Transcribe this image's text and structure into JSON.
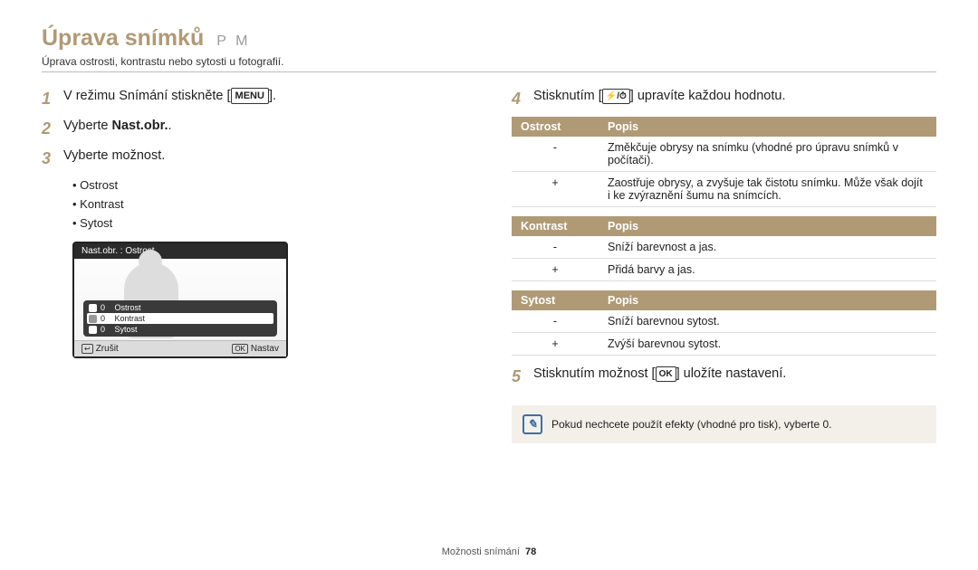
{
  "header": {
    "title": "Úprava snímků",
    "modes": "P M",
    "subtitle": "Úprava ostrosti, kontrastu nebo sytosti u fotografií."
  },
  "left": {
    "steps": [
      {
        "num": "1",
        "pre": "V režimu Snímání stiskněte [",
        "box": "MENU",
        "post": "]."
      },
      {
        "num": "2",
        "pre": "Vyberte ",
        "bold": "Nast.obr.",
        "post": "."
      },
      {
        "num": "3",
        "pre": "Vyberte možnost."
      }
    ],
    "bullets": [
      "Ostrost",
      "Kontrast",
      "Sytost"
    ],
    "cam": {
      "header": "Nast.obr. : Ostrost",
      "rows": [
        {
          "label": "Ostrost",
          "val": "0"
        },
        {
          "label": "Kontrast",
          "val": "0"
        },
        {
          "label": "Sytost",
          "val": "0"
        }
      ],
      "footer_left_icon": "↩",
      "footer_left": "Zrušit",
      "footer_right_icon": "OK",
      "footer_right": "Nastav"
    }
  },
  "right": {
    "step4": {
      "num": "4",
      "pre": "Stisknutím [",
      "icons": "⚡/⏱",
      "post": "] upravíte každou hodnotu."
    },
    "tables": [
      {
        "h1": "Ostrost",
        "h2": "Popis",
        "rows": [
          {
            "k": "-",
            "v": "Změkčuje obrysy na snímku (vhodné pro úpravu snímků v počítači)."
          },
          {
            "k": "+",
            "v": "Zaostřuje obrysy, a zvyšuje tak čistotu snímku. Může však dojít i ke zvýraznění šumu na snímcích."
          }
        ]
      },
      {
        "h1": "Kontrast",
        "h2": "Popis",
        "rows": [
          {
            "k": "-",
            "v": "Sníží barevnost a jas."
          },
          {
            "k": "+",
            "v": "Přidá barvy a jas."
          }
        ]
      },
      {
        "h1": "Sytost",
        "h2": "Popis",
        "rows": [
          {
            "k": "-",
            "v": "Sníží barevnou sytost."
          },
          {
            "k": "+",
            "v": "Zvýší barevnou sytost."
          }
        ]
      }
    ],
    "step5": {
      "num": "5",
      "pre": "Stisknutím možnost [",
      "box": "OK",
      "post": "] uložíte nastavení."
    },
    "note": "Pokud nechcete použít efekty (vhodné pro tisk), vyberte 0."
  },
  "footer": {
    "section": "Možnosti snímání",
    "page": "78"
  }
}
